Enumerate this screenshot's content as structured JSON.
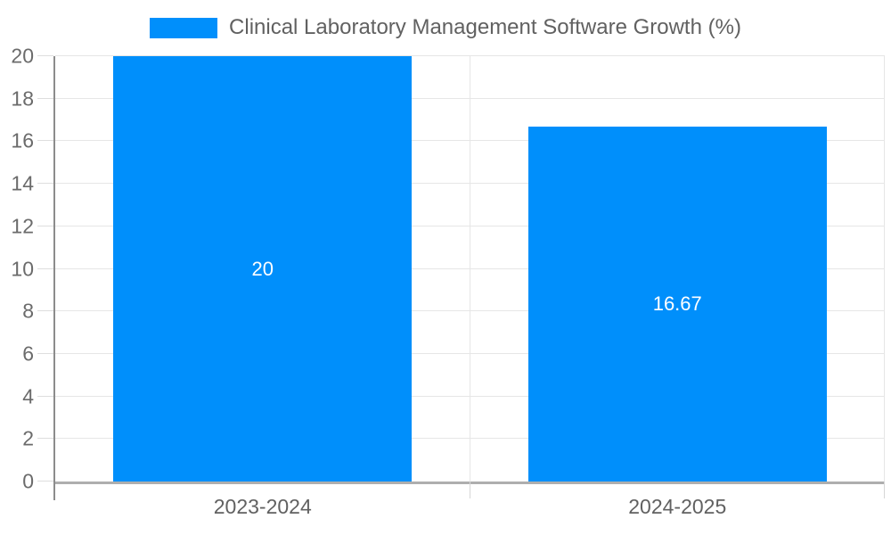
{
  "legend": {
    "label": "Clinical Laboratory Management Software Growth (%)"
  },
  "colors": {
    "bar": "#008FFB",
    "grid": "#e6e6e6",
    "y_axis_line": "#8c8c8c",
    "x_axis_line": "#aeaeae",
    "axis_label_text": "#616161",
    "bar_label_text": "#ffffff"
  },
  "chart_data": {
    "type": "bar",
    "title": "Clinical Laboratory Management Software Growth (%)",
    "categories": [
      "2023-2024",
      "2024-2025"
    ],
    "values": [
      20,
      16.67
    ],
    "bar_value_labels": [
      "20",
      "16.67"
    ],
    "xlabel": "",
    "ylabel": "",
    "ylim": [
      0,
      20
    ],
    "ytick_step": 2,
    "ytick_labels": [
      "0",
      "2",
      "4",
      "6",
      "8",
      "10",
      "12",
      "14",
      "16",
      "18",
      "20"
    ],
    "grid": true,
    "legend_position": "top-center",
    "bar_label_position": "center"
  }
}
